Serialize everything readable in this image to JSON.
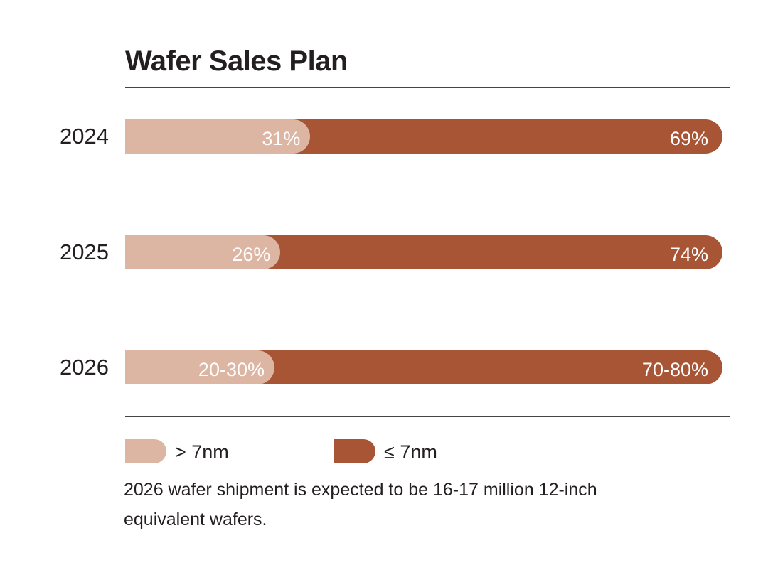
{
  "colors": {
    "gt7nm": "#dcb5a3",
    "le7nm": "#a85535"
  },
  "chart_data": {
    "type": "bar",
    "stacked": true,
    "orientation": "horizontal",
    "title": "Wafer Sales Plan",
    "categories": [
      "2024",
      "2025",
      "2026"
    ],
    "series": [
      {
        "name": "> 7nm",
        "values": [
          31,
          26,
          25
        ],
        "labels": [
          "31%",
          "26%",
          "20-30%"
        ]
      },
      {
        "name": "≤ 7nm",
        "values": [
          69,
          74,
          75
        ],
        "labels": [
          "69%",
          "74%",
          "70-80%"
        ]
      }
    ],
    "xlim": [
      0,
      100
    ],
    "grid": false,
    "legend_position": "bottom-left"
  },
  "note": "2026 wafer shipment is expected to be 16-17 million 12-inch equivalent wafers."
}
